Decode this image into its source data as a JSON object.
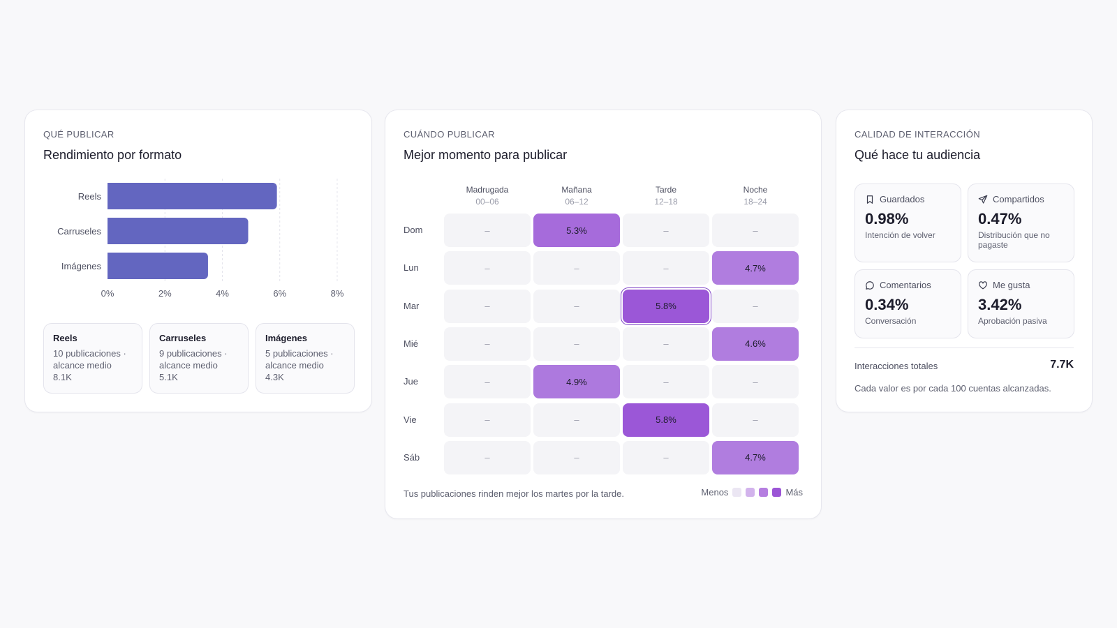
{
  "formats_card": {
    "eyebrow": "QUÉ PUBLICAR",
    "title": "Rendimiento por formato",
    "formats": [
      {
        "name": "Reels",
        "desc": "10 publicaciones · alcance medio 8.1K"
      },
      {
        "name": "Carruseles",
        "desc": "9 publicaciones · alcance medio 5.1K"
      },
      {
        "name": "Imágenes",
        "desc": "5 publicaciones · alcance medio 4.3K"
      }
    ]
  },
  "chart_data": {
    "type": "bar",
    "orientation": "horizontal",
    "categories": [
      "Reels",
      "Carruseles",
      "Imágenes"
    ],
    "values": [
      5.9,
      4.9,
      3.5
    ],
    "xlim": [
      0,
      8
    ],
    "x_ticks": [
      "0%",
      "2%",
      "4%",
      "6%",
      "8%"
    ],
    "grid": true,
    "color": "#6366c0"
  },
  "when_card": {
    "eyebrow": "CUÁNDO PUBLICAR",
    "title": "Mejor momento para publicar",
    "columns": [
      {
        "name": "Madrugada",
        "range": "00–06"
      },
      {
        "name": "Mañana",
        "range": "06–12"
      },
      {
        "name": "Tarde",
        "range": "12–18"
      },
      {
        "name": "Noche",
        "range": "18–24"
      }
    ],
    "rows": [
      {
        "day": "Dom",
        "cells": [
          "–",
          "5.3%",
          "–",
          "–"
        ]
      },
      {
        "day": "Lun",
        "cells": [
          "–",
          "–",
          "–",
          "4.7%"
        ]
      },
      {
        "day": "Mar",
        "cells": [
          "–",
          "–",
          "5.8%",
          "–"
        ]
      },
      {
        "day": "Mié",
        "cells": [
          "–",
          "–",
          "–",
          "4.6%"
        ]
      },
      {
        "day": "Jue",
        "cells": [
          "–",
          "4.9%",
          "–",
          "–"
        ]
      },
      {
        "day": "Vie",
        "cells": [
          "–",
          "–",
          "5.8%",
          "–"
        ]
      },
      {
        "day": "Sáb",
        "cells": [
          "–",
          "–",
          "–",
          "4.7%"
        ]
      }
    ],
    "selected": {
      "day": "Mar",
      "column": "Tarde"
    },
    "footer": "Tus publicaciones rinden mejor los martes por la tarde.",
    "legend_less": "Menos",
    "legend_more": "Más",
    "legend_colors": [
      "#ebe6f3",
      "#d2b3ec",
      "#b57ee0",
      "#9b55d6"
    ]
  },
  "quality_card": {
    "eyebrow": "CALIDAD DE INTERACCIÓN",
    "title": "Qué hace tu audiencia",
    "metrics": [
      {
        "label": "Guardados",
        "icon": "bookmark-icon",
        "value": "0.98%",
        "desc": "Intención de volver"
      },
      {
        "label": "Compartidos",
        "icon": "send-icon",
        "value": "0.47%",
        "desc": "Distribución que no pagaste"
      },
      {
        "label": "Comentarios",
        "icon": "comment-icon",
        "value": "0.34%",
        "desc": "Conversación"
      },
      {
        "label": "Me gusta",
        "icon": "heart-icon",
        "value": "3.42%",
        "desc": "Aprobación pasiva"
      }
    ],
    "total_label": "Interacciones totales",
    "total_value": "7.7K",
    "note": "Cada valor es por cada 100 cuentas alcanzadas."
  }
}
